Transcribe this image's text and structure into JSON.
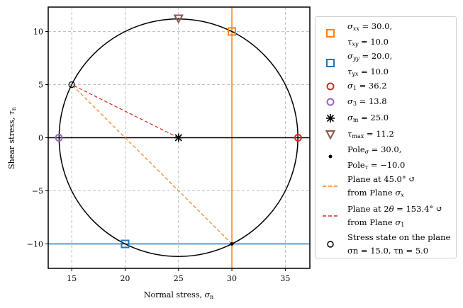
{
  "chart_data": {
    "type": "scatter",
    "title": "",
    "xlabel": "Normal stress, σn",
    "ylabel": "Shear stress, τn",
    "xlim": [
      12.8,
      37.3
    ],
    "ylim": [
      -12.3,
      12.3
    ],
    "xticks": [
      15,
      20,
      25,
      30,
      35
    ],
    "yticks": [
      -10,
      -5,
      0,
      5,
      10
    ],
    "xtick_labels": [
      "15",
      "20",
      "25",
      "30",
      "35"
    ],
    "ytick_labels": [
      "−10",
      "−5",
      "0",
      "5",
      "10"
    ],
    "grid": true,
    "legend_position": "outside right",
    "circle": {
      "center": [
        25.0,
        0.0
      ],
      "radius": 11.18,
      "color": "#000000"
    },
    "series": [
      {
        "name": "σxx = 30.0, τxy = 10.0",
        "marker": "square-open",
        "color": "#ff7f0e",
        "x": [
          30.0
        ],
        "y": [
          10.0
        ]
      },
      {
        "name": "σyy = 20.0, τyx = 10.0",
        "marker": "square-open",
        "color": "#1f77b4",
        "x": [
          20.0
        ],
        "y": [
          -10.0
        ]
      },
      {
        "name": "σ1 = 36.2",
        "marker": "circle-open",
        "color": "#d62728",
        "x": [
          36.2
        ],
        "y": [
          0.0
        ]
      },
      {
        "name": "σ3 = 13.8",
        "marker": "circle-open",
        "color": "#9467bd",
        "x": [
          13.8
        ],
        "y": [
          0.0
        ]
      },
      {
        "name": "σm = 25.0",
        "marker": "asterisk",
        "color": "#000000",
        "x": [
          25.0
        ],
        "y": [
          0.0
        ]
      },
      {
        "name": "τmax = 11.2",
        "marker": "triangle-down-open",
        "color": "#8c564b",
        "x": [
          25.0
        ],
        "y": [
          11.2
        ]
      },
      {
        "name": "Poleσ = 30.0, Poleτ = −10.0",
        "marker": "dot",
        "color": "#000000",
        "x": [
          30.0
        ],
        "y": [
          -10.0
        ]
      },
      {
        "name": "Plane at 45.0° ↺ from Plane σx",
        "marker": "dashed-line",
        "color": "#ff7f0e",
        "x": [
          30.0,
          15.0
        ],
        "y": [
          -10.0,
          5.0
        ]
      },
      {
        "name": "Plane at 2θ = 153.4° ↺ from Plane σ1",
        "marker": "dashed-line",
        "color": "#d62728",
        "x": [
          25.0,
          15.0
        ],
        "y": [
          0.0,
          5.0
        ]
      },
      {
        "name": "Stress state on the plane σn = 15.0, τn = 5.0",
        "marker": "circle-open-small",
        "color": "#000000",
        "x": [
          15.0
        ],
        "y": [
          5.0
        ]
      }
    ],
    "reference_lines": [
      {
        "type": "vertical",
        "x": 30.0,
        "color": "#ff7f0e"
      },
      {
        "type": "horizontal",
        "y": -10.0,
        "color": "#1f77b4"
      },
      {
        "type": "horizontal",
        "y": 0.0,
        "color": "#000000"
      }
    ]
  },
  "axes": {
    "xlabel_main": "Normal stress, ",
    "xlabel_sym": "σ",
    "xlabel_sub": "n",
    "ylabel_main": "Shear stress, ",
    "ylabel_sym": "τ",
    "ylabel_sub": "n"
  },
  "legend": {
    "items": [
      {
        "line1_sym": "σ",
        "line1_sub": "xx",
        "line1_rest": " = 30.0,",
        "line2_sym": "τ",
        "line2_sub": "xy",
        "line2_rest": " = 10.0"
      },
      {
        "line1_sym": "σ",
        "line1_sub": "yy",
        "line1_rest": " = 20.0,",
        "line2_sym": "τ",
        "line2_sub": "yx",
        "line2_rest": " = 10.0"
      },
      {
        "sym": "σ",
        "sub": "1",
        "rest": " = 36.2"
      },
      {
        "sym": "σ",
        "sub": "3",
        "rest": " = 13.8"
      },
      {
        "sym": "σ",
        "sub": "m",
        "rest": " = 25.0"
      },
      {
        "sym": "τ",
        "sub": "max",
        "rest": " = 11.2"
      },
      {
        "line1_pre": "Pole",
        "line1_sub": "σ",
        "line1_rest": " = 30.0,",
        "line2_pre": "Pole",
        "line2_sub": "τ",
        "line2_rest": " = −10.0"
      },
      {
        "line1": "Plane at 45.0° ↺",
        "line2_pre": "from Plane ",
        "line2_sym": "σ",
        "line2_sub": "x"
      },
      {
        "line1_pre": "Plane at 2",
        "line1_sym": "θ",
        "line1_rest": " = 153.4° ↺",
        "line2_pre": "from Plane ",
        "line2_sym": "σ",
        "line2_sub": "1"
      },
      {
        "line1": "Stress state on the plane",
        "line2": "σn = 15.0, τn = 5.0"
      }
    ]
  }
}
